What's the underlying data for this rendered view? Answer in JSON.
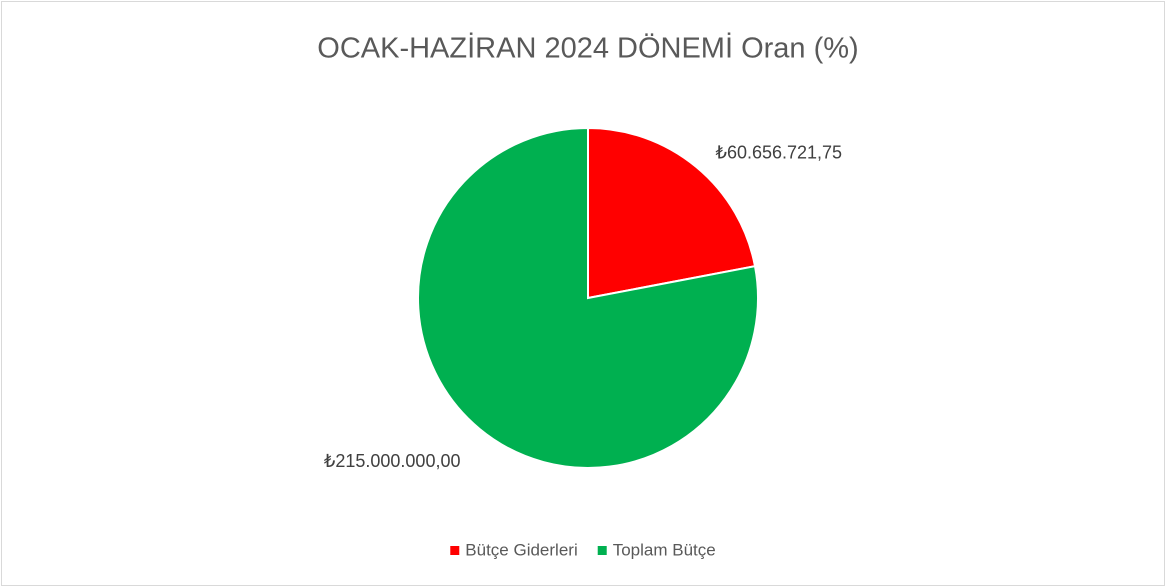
{
  "chart_data": {
    "type": "pie",
    "title": "OCAK-HAZİRAN 2024 DÖNEMİ  Oran (%)",
    "categories": [
      "Bütçe Giderleri",
      "Toplam Bütçe"
    ],
    "values": [
      60656721.75,
      215000000
    ],
    "value_labels": [
      "₺60.656.721,75",
      "₺215.000.000,00"
    ],
    "colors": [
      "#ff0000",
      "#00b050"
    ],
    "legend": "bottom"
  }
}
